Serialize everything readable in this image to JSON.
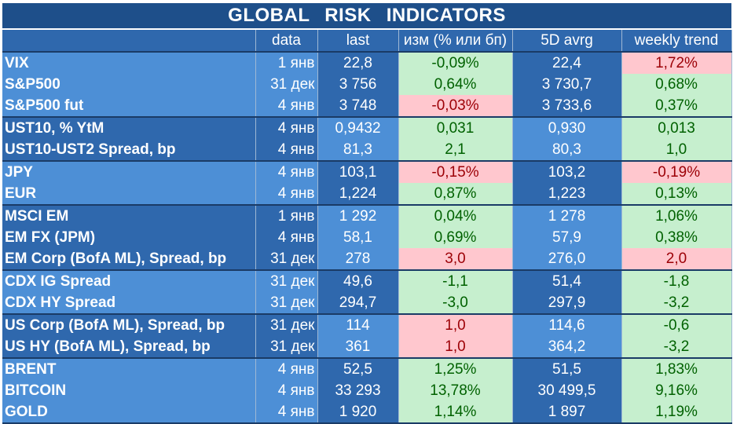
{
  "title": "GLOBAL   RISK   INDICATORS",
  "headers": {
    "name": "",
    "data": "data",
    "last": "last",
    "change": "изм (% или бп)",
    "avg": "5D avrg",
    "trend": "weekly trend"
  },
  "rows": [
    {
      "name": "VIX",
      "date": "1 янв",
      "last": "22,8",
      "change": "-0,09%",
      "change_status": "positive",
      "avg": "22,4",
      "trend": "1,72%",
      "trend_status": "negative"
    },
    {
      "name": "S&P500",
      "date": "31 дек",
      "last": "3 756",
      "change": "0,64%",
      "change_status": "positive",
      "avg": "3 730,7",
      "trend": "0,68%",
      "trend_status": "positive"
    },
    {
      "name": "S&P500 fut",
      "date": "4 янв",
      "last": "3 748",
      "change": "-0,03%",
      "change_status": "negative",
      "avg": "3 733,6",
      "trend": "0,37%",
      "trend_status": "positive"
    },
    {
      "name": "UST10, % YtM",
      "date": "4 янв",
      "last": "0,9432",
      "change": "0,031",
      "change_status": "positive",
      "avg": "0,930",
      "trend": "0,013",
      "trend_status": "positive"
    },
    {
      "name": "UST10-UST2 Spread, bp",
      "date": "4 янв",
      "last": "81,3",
      "change": "2,1",
      "change_status": "positive",
      "avg": "80,3",
      "trend": "1,0",
      "trend_status": "positive"
    },
    {
      "name": "JPY",
      "date": "4 янв",
      "last": "103,1",
      "change": "-0,15%",
      "change_status": "negative",
      "avg": "103,2",
      "trend": "-0,19%",
      "trend_status": "negative"
    },
    {
      "name": "EUR",
      "date": "4 янв",
      "last": "1,224",
      "change": "0,87%",
      "change_status": "positive",
      "avg": "1,223",
      "trend": "0,13%",
      "trend_status": "positive"
    },
    {
      "name": "MSCI EM",
      "date": "1 янв",
      "last": "1 292",
      "change": "0,04%",
      "change_status": "positive",
      "avg": "1 278",
      "trend": "1,06%",
      "trend_status": "positive"
    },
    {
      "name": "EM FX (JPM)",
      "date": "4 янв",
      "last": "58,1",
      "change": "0,69%",
      "change_status": "positive",
      "avg": "57,9",
      "trend": "0,38%",
      "trend_status": "positive"
    },
    {
      "name": "EM Corp (BofA ML), Spread, bp",
      "date": "31 дек",
      "last": "278",
      "change": "3,0",
      "change_status": "negative",
      "avg": "276,0",
      "trend": "2,0",
      "trend_status": "negative"
    },
    {
      "name": "CDX IG Spread",
      "date": "31 дек",
      "last": "49,6",
      "change": "-1,1",
      "change_status": "positive",
      "avg": "51,4",
      "trend": "-1,8",
      "trend_status": "positive"
    },
    {
      "name": "CDX HY Spread",
      "date": "31 дек",
      "last": "294,7",
      "change": "-3,0",
      "change_status": "positive",
      "avg": "297,9",
      "trend": "-3,2",
      "trend_status": "positive"
    },
    {
      "name": "US Corp (BofA ML), Spread, bp",
      "date": "31 дек",
      "last": "114",
      "change": "1,0",
      "change_status": "negative",
      "avg": "114,6",
      "trend": "-0,6",
      "trend_status": "positive"
    },
    {
      "name": "US HY (BofA ML), Spread, bp",
      "date": "31 дек",
      "last": "361",
      "change": "1,0",
      "change_status": "negative",
      "avg": "364,2",
      "trend": "-3,2",
      "trend_status": "positive"
    },
    {
      "name": "BRENT",
      "date": "4 янв",
      "last": "52,5",
      "change": "1,25%",
      "change_status": "positive",
      "avg": "51,5",
      "trend": "1,83%",
      "trend_status": "positive"
    },
    {
      "name": "BITCOIN",
      "date": "4 янв",
      "last": "33 293",
      "change": "13,78%",
      "change_status": "positive",
      "avg": "30 499,5",
      "trend": "9,16%",
      "trend_status": "positive"
    },
    {
      "name": "GOLD",
      "date": "4 янв",
      "last": "1 920",
      "change": "1,14%",
      "change_status": "positive",
      "avg": "1 897",
      "trend": "1,19%",
      "trend_status": "positive"
    }
  ],
  "colors": {
    "title_bg": "#1e4f8a",
    "header_bg": "#2f68ad",
    "label_bg": "#4d8fd6",
    "positive_bg": "#c6efce",
    "positive_fg": "#006100",
    "negative_bg": "#ffc7ce",
    "negative_fg": "#9c0006"
  }
}
